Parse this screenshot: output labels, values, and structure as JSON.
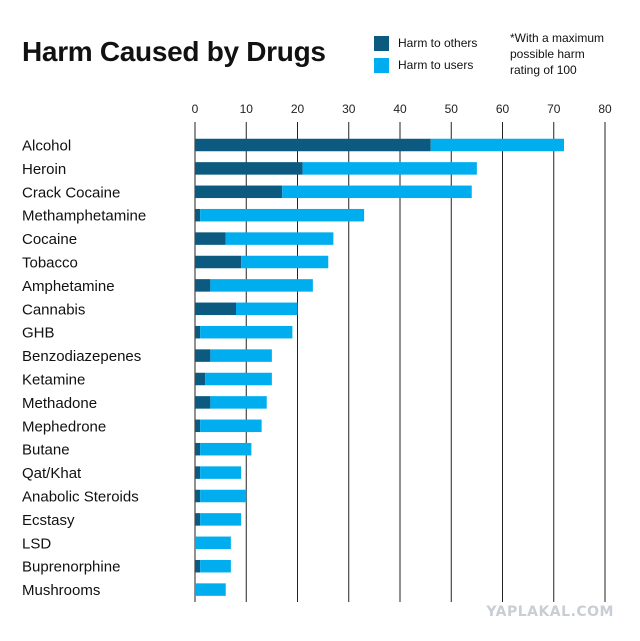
{
  "header": {
    "title": "Harm Caused by Drugs",
    "note": "*With a maximum possible harm rating of 100"
  },
  "watermark": "YAPLAKAL.COM",
  "colors": {
    "others": "#0c5a80",
    "users": "#00aeef",
    "gridline": "#222222"
  },
  "chart_data": {
    "type": "bar",
    "orientation": "horizontal",
    "stacked": true,
    "title": "Harm Caused by Drugs",
    "xlabel": "",
    "ylabel": "",
    "xlim": [
      0,
      80
    ],
    "xticks": [
      0,
      10,
      20,
      30,
      40,
      50,
      60,
      70,
      80
    ],
    "grid": true,
    "legend_position": "top",
    "categories": [
      "Alcohol",
      "Heroin",
      "Crack Cocaine",
      "Methamphetamine",
      "Cocaine",
      "Tobacco",
      "Amphetamine",
      "Cannabis",
      "GHB",
      "Benzodiazepenes",
      "Ketamine",
      "Methadone",
      "Mephedrone",
      "Butane",
      "Qat/Khat",
      "Anabolic Steroids",
      "Ecstasy",
      "LSD",
      "Buprenorphine",
      "Mushrooms"
    ],
    "series": [
      {
        "name": "Harm to others",
        "values": [
          46,
          21,
          17,
          1,
          6,
          9,
          3,
          8,
          1,
          3,
          2,
          3,
          1,
          1,
          1,
          1,
          1,
          0,
          1,
          0
        ]
      },
      {
        "name": "Harm to users",
        "values": [
          26,
          34,
          37,
          32,
          21,
          17,
          20,
          12,
          18,
          12,
          13,
          11,
          12,
          10,
          8,
          9,
          8,
          7,
          6,
          6
        ]
      }
    ]
  }
}
